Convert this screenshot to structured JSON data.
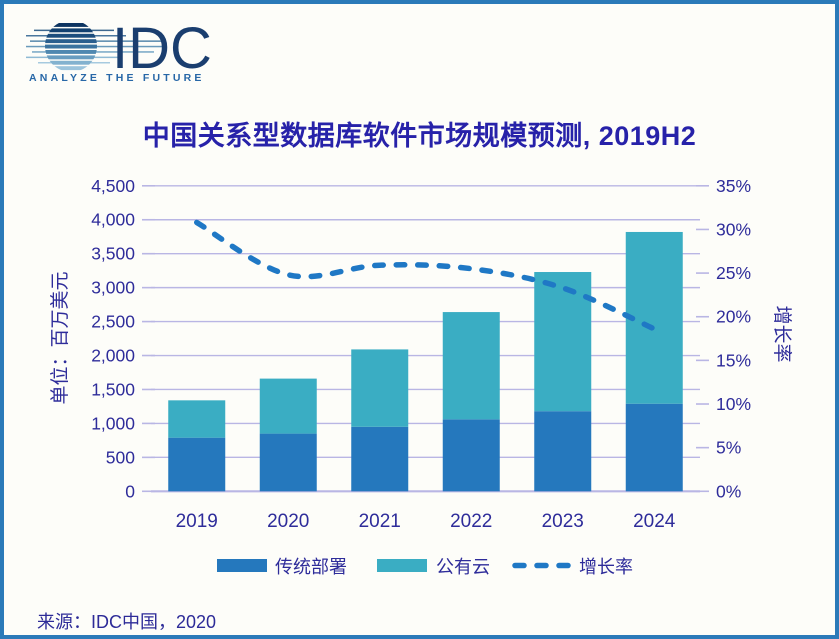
{
  "logo": {
    "brand": "IDC",
    "tagline": "ANALYZE THE FUTURE"
  },
  "source": "来源：IDC中国，2020",
  "chart_data": {
    "type": "bar",
    "subtype": "stacked-column-with-line",
    "title": "中国关系型数据库软件市场规模预测, 2019H2",
    "categories": [
      "2019",
      "2020",
      "2021",
      "2022",
      "2023",
      "2024"
    ],
    "series": [
      {
        "name": "传统部署",
        "type": "bar",
        "stack": true,
        "color": "#2578bd",
        "values": [
          790,
          850,
          950,
          1060,
          1180,
          1290
        ]
      },
      {
        "name": "公有云",
        "type": "bar",
        "stack": true,
        "color": "#3aadc3",
        "values": [
          550,
          810,
          1140,
          1580,
          2050,
          2530
        ]
      },
      {
        "name": "增长率",
        "type": "line",
        "axis": "right",
        "style": "dashed",
        "color": "#1f78c5",
        "values_pct": [
          30.8,
          24.8,
          25.9,
          25.5,
          23.3,
          18.6
        ]
      }
    ],
    "stacked_totals": [
      1340,
      1660,
      2090,
      2640,
      3230,
      3820
    ],
    "left_axis": {
      "label": "单位：百万美元",
      "min": 0,
      "max": 4500,
      "step": 500,
      "tick_labels": [
        "0",
        "500",
        "1,000",
        "1,500",
        "2,000",
        "2,500",
        "3,000",
        "3,500",
        "4,000",
        "4,500"
      ]
    },
    "right_axis": {
      "label": "增长率",
      "min": 0,
      "max": 35,
      "step": 5,
      "tick_labels": [
        "0%",
        "5%",
        "10%",
        "15%",
        "20%",
        "25%",
        "30%",
        "35%"
      ]
    },
    "legend": [
      "传统部署",
      "公有云",
      "增长率"
    ],
    "legend_position": "bottom",
    "grid": true,
    "colors": {
      "grid": "#b9b6e4",
      "text": "#2e2c9a",
      "title": "#2722a9",
      "border": "#2b7ab9"
    }
  }
}
